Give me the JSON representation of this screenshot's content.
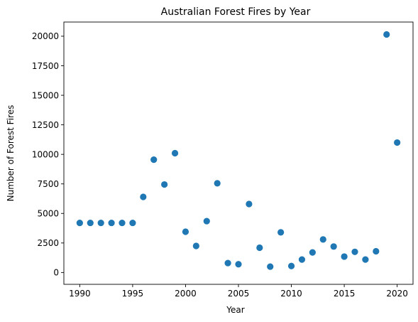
{
  "chart_data": {
    "type": "scatter",
    "title": "Australian Forest Fires by Year",
    "xlabel": "Year",
    "ylabel": "Number of Forest Fires",
    "xlim": [
      1988.5,
      2021.5
    ],
    "ylim": [
      -1000,
      21200
    ],
    "xticks": [
      1990,
      1995,
      2000,
      2005,
      2010,
      2015,
      2020
    ],
    "yticks": [
      0,
      2500,
      5000,
      7500,
      10000,
      12500,
      15000,
      17500,
      20000
    ],
    "grid": false,
    "color": "#1f77b4",
    "x": [
      1990,
      1991,
      1992,
      1993,
      1994,
      1995,
      1996,
      1997,
      1998,
      1999,
      2000,
      2001,
      2002,
      2003,
      2004,
      2005,
      2006,
      2007,
      2008,
      2009,
      2010,
      2011,
      2012,
      2013,
      2014,
      2015,
      2016,
      2017,
      2018,
      2019,
      2020
    ],
    "y": [
      4200,
      4200,
      4200,
      4200,
      4200,
      4200,
      6400,
      9550,
      7450,
      10100,
      3450,
      2250,
      4350,
      7550,
      800,
      700,
      5800,
      2100,
      500,
      3400,
      550,
      1100,
      1700,
      2800,
      2200,
      1350,
      1750,
      1100,
      1800,
      20150,
      11000
    ]
  }
}
